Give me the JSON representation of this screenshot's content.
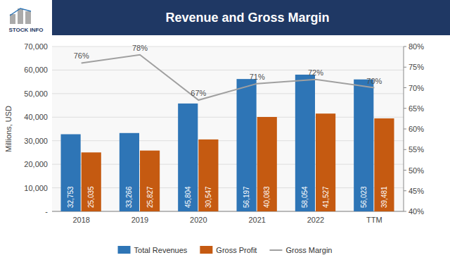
{
  "chart_data": {
    "type": "bar",
    "title": "Revenue and Gross Margin",
    "annotations": [
      "STOCK INFO"
    ],
    "ylabel": "Millions, USD",
    "categories": [
      "2018",
      "2019",
      "2020",
      "2021",
      "2022",
      "TTM"
    ],
    "series": [
      {
        "name": "Total Revenues",
        "color": "#2E75B6",
        "values": [
          32753,
          33266,
          45804,
          56197,
          58054,
          56023
        ],
        "value_labels": [
          "32,753",
          "33,266",
          "45,804",
          "56,197",
          "58,054",
          "56,023"
        ]
      },
      {
        "name": "Gross Profit",
        "color": "#C55A11",
        "values": [
          25035,
          25827,
          30547,
          40083,
          41527,
          39481
        ],
        "value_labels": [
          "25,035",
          "25,827",
          "30,547",
          "40,083",
          "41,527",
          "39,481"
        ]
      },
      {
        "name": "Gross Margin",
        "type": "line",
        "axis": "y2",
        "color": "#A0A0A0",
        "values": [
          0.76,
          0.78,
          0.67,
          0.71,
          0.72,
          0.7
        ],
        "value_labels": [
          "76%",
          "78%",
          "67%",
          "71%",
          "72%",
          "70%"
        ]
      }
    ],
    "ylim": [
      0,
      70000
    ],
    "yticks": [
      {
        "value": 0,
        "label": "-"
      },
      {
        "value": 10000,
        "label": "10,000"
      },
      {
        "value": 20000,
        "label": "20,000"
      },
      {
        "value": 30000,
        "label": "30,000"
      },
      {
        "value": 40000,
        "label": "40,000"
      },
      {
        "value": 50000,
        "label": "50,000"
      },
      {
        "value": 60000,
        "label": "60,000"
      },
      {
        "value": 70000,
        "label": "70,000"
      }
    ],
    "y2lim": [
      0.4,
      0.8
    ],
    "y2ticks": [
      {
        "value": 0.4,
        "label": "40%"
      },
      {
        "value": 0.45,
        "label": "45%"
      },
      {
        "value": 0.5,
        "label": "50%"
      },
      {
        "value": 0.55,
        "label": "55%"
      },
      {
        "value": 0.6,
        "label": "60%"
      },
      {
        "value": 0.65,
        "label": "65%"
      },
      {
        "value": 0.7,
        "label": "70%"
      },
      {
        "value": 0.75,
        "label": "75%"
      },
      {
        "value": 0.8,
        "label": "80%"
      }
    ],
    "grid": true,
    "data_labels": true,
    "legend": "bottom"
  }
}
